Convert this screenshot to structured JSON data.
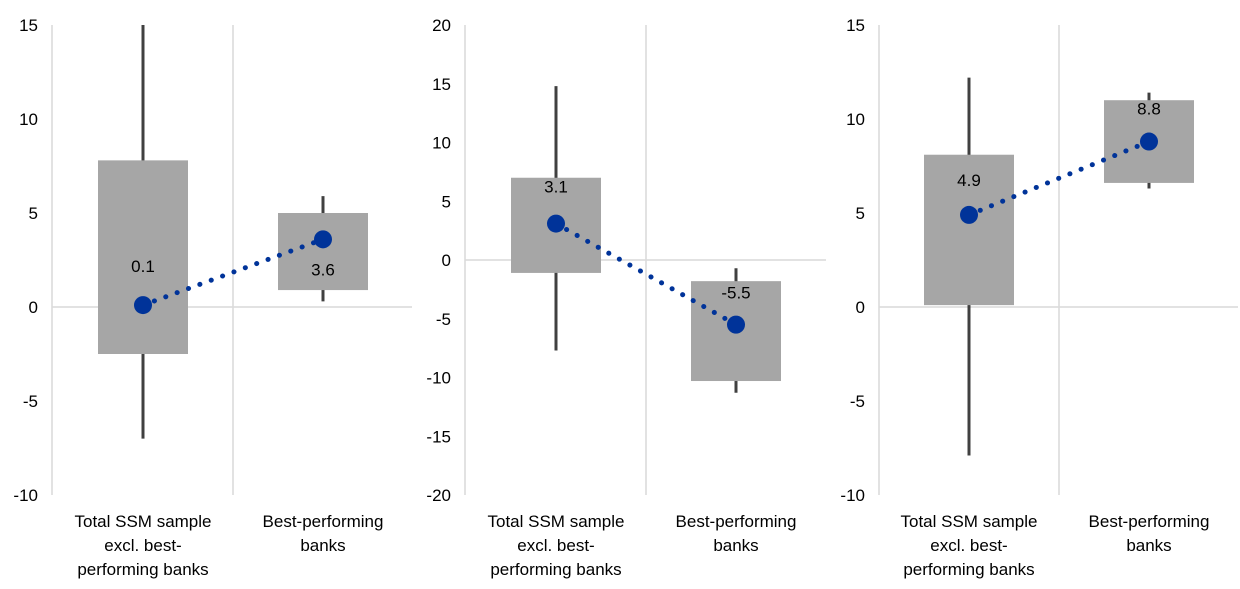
{
  "colors": {
    "box": "#a6a6a6",
    "whisker": "#404040",
    "marker": "#003399",
    "axis": "#d9d9d9",
    "text": "#000000"
  },
  "chart_data": [
    {
      "type": "box",
      "ylim": [
        -10,
        15
      ],
      "yticks": [
        15,
        10,
        5,
        0,
        -5,
        -10
      ],
      "ytick_labels": [
        "15",
        "10",
        "5",
        "0",
        "-5",
        "-10"
      ],
      "categories": [
        [
          "Total SSM sample",
          "excl. best-",
          "performing banks"
        ],
        [
          "Best-performing",
          "banks"
        ]
      ],
      "boxes": [
        {
          "whisker_low": -7,
          "q1": -2.5,
          "q3": 7.8,
          "whisker_high": 15,
          "median": 0.1,
          "label": "0.1"
        },
        {
          "whisker_low": 0.3,
          "q1": 0.9,
          "q3": 5.0,
          "whisker_high": 5.9,
          "median": 3.6,
          "label": "3.6"
        }
      ]
    },
    {
      "type": "box",
      "ylim": [
        -20,
        20
      ],
      "yticks": [
        20,
        15,
        10,
        5,
        0,
        -5,
        -10,
        -15,
        -20
      ],
      "ytick_labels": [
        "20",
        "15",
        "10",
        "5",
        "0",
        "-5",
        "-10",
        "-15",
        "-20"
      ],
      "categories": [
        [
          "Total SSM sample",
          "excl. best-",
          "performing banks"
        ],
        [
          "Best-performing",
          "banks"
        ]
      ],
      "boxes": [
        {
          "whisker_low": -7.7,
          "q1": -1.1,
          "q3": 7.0,
          "whisker_high": 14.8,
          "median": 3.1,
          "label": "3.1"
        },
        {
          "whisker_low": -11.3,
          "q1": -10.3,
          "q3": -1.8,
          "whisker_high": -0.7,
          "median": -5.5,
          "label": "-5.5"
        }
      ]
    },
    {
      "type": "box",
      "ylim": [
        -10,
        15
      ],
      "yticks": [
        15,
        10,
        5,
        0,
        -5,
        -10
      ],
      "ytick_labels": [
        "15",
        "10",
        "5",
        "0",
        "-5",
        "-10"
      ],
      "categories": [
        [
          "Total SSM sample",
          "excl. best-",
          "performing banks"
        ],
        [
          "Best-performing",
          "banks"
        ]
      ],
      "boxes": [
        {
          "whisker_low": -7.9,
          "q1": 0.1,
          "q3": 8.1,
          "whisker_high": 12.2,
          "median": 4.9,
          "label": "4.9"
        },
        {
          "whisker_low": 6.3,
          "q1": 6.6,
          "q3": 11.0,
          "whisker_high": 11.4,
          "median": 8.8,
          "label": "8.8"
        }
      ]
    }
  ]
}
